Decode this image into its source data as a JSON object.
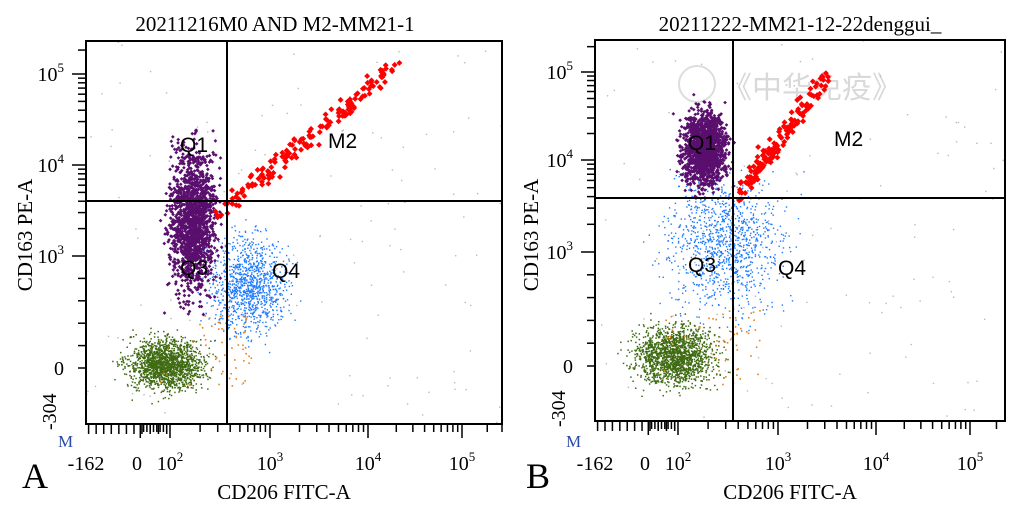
{
  "watermark": "《中华免疫》",
  "chart_data": [
    {
      "type": "scatter",
      "panel_label": "A",
      "title": "20211216M0 AND M2-MM21-1",
      "xlabel": "CD206 FITC-A",
      "ylabel": "CD163 PE-A",
      "x_ticks": [
        "-162",
        "0",
        "10",
        "10",
        "10",
        "10"
      ],
      "x_tick_exp": [
        "",
        "",
        "2",
        "3",
        "4",
        "5"
      ],
      "y_ticks": [
        "-304",
        "0",
        "10",
        "10",
        "10"
      ],
      "y_tick_exp": [
        "",
        "",
        "3",
        "4",
        "5"
      ],
      "corner_mark": "M",
      "quadrants": [
        {
          "name": "Q1"
        },
        {
          "name": "M2"
        },
        {
          "name": "Q3"
        },
        {
          "name": "Q4"
        }
      ],
      "gate_x": 400,
      "gate_y": 3800,
      "populations": [
        {
          "color": "#5a0f6e",
          "x_range": [
            60,
            400
          ],
          "y_range": [
            300,
            40000
          ]
        },
        {
          "color": "#ff0000",
          "x_range": [
            300,
            20000
          ],
          "y_range": [
            3000,
            200000
          ]
        },
        {
          "color": "#1e7bff",
          "x_range": [
            150,
            2500
          ],
          "y_range": [
            50,
            3500
          ]
        },
        {
          "color": "#3f6b12",
          "x_range": [
            -100,
            350
          ],
          "y_range": [
            -200,
            400
          ]
        }
      ]
    },
    {
      "type": "scatter",
      "panel_label": "B",
      "title": "20211222-MM21-12-22denggui_",
      "xlabel": "CD206 FITC-A",
      "ylabel": "CD163 PE-A",
      "x_ticks": [
        "-162",
        "0",
        "10",
        "10",
        "10",
        "10"
      ],
      "x_tick_exp": [
        "",
        "",
        "2",
        "3",
        "4",
        "5"
      ],
      "y_ticks": [
        "-304",
        "0",
        "10",
        "10",
        "10"
      ],
      "y_tick_exp": [
        "",
        "",
        "3",
        "4",
        "5"
      ],
      "corner_mark": "M",
      "quadrants": [
        {
          "name": "Q1"
        },
        {
          "name": "M2"
        },
        {
          "name": "Q3"
        },
        {
          "name": "Q4"
        }
      ],
      "gate_x": 400,
      "gate_y": 4000,
      "populations": [
        {
          "color": "#5a0f6e",
          "x_range": [
            80,
            400
          ],
          "y_range": [
            3000,
            60000
          ]
        },
        {
          "color": "#ff0000",
          "x_range": [
            400,
            3000
          ],
          "y_range": [
            4000,
            120000
          ]
        },
        {
          "color": "#1e7bff",
          "x_range": [
            -50,
            2500
          ],
          "y_range": [
            100,
            20000
          ]
        },
        {
          "color": "#3f6b12",
          "x_range": [
            -120,
            400
          ],
          "y_range": [
            -200,
            500
          ]
        }
      ]
    }
  ]
}
